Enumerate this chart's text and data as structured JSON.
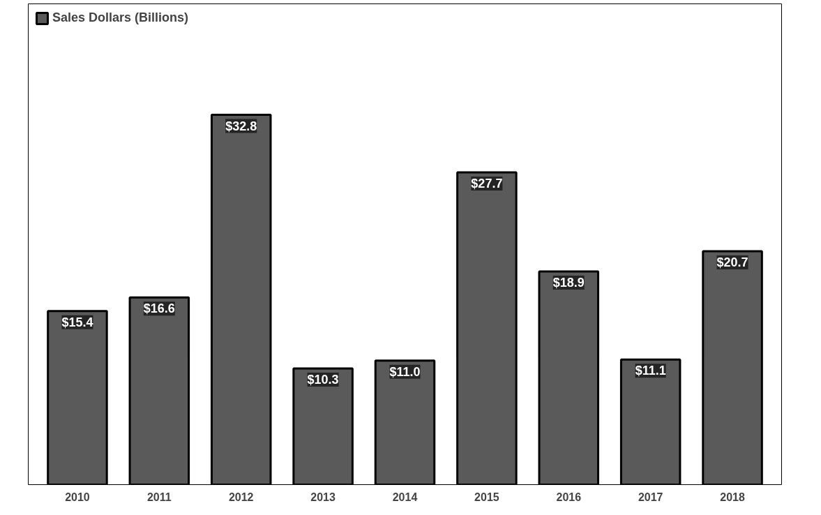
{
  "chart_data": {
    "type": "bar",
    "categories": [
      "2010",
      "2011",
      "2012",
      "2013",
      "2014",
      "2015",
      "2016",
      "2017",
      "2018"
    ],
    "series": [
      {
        "name": "Sales Dollars (Billions)",
        "color": "#5a5a5a",
        "values": [
          15.4,
          16.6,
          32.8,
          10.3,
          11.0,
          27.7,
          18.9,
          11.1,
          20.7
        ],
        "value_labels": [
          "$15.4",
          "$16.6",
          "$32.8",
          "$10.3",
          "$11.0",
          "$27.7",
          "$18.9",
          "$11.1",
          "$20.7"
        ]
      }
    ],
    "legend": "top left",
    "grid": false
  }
}
